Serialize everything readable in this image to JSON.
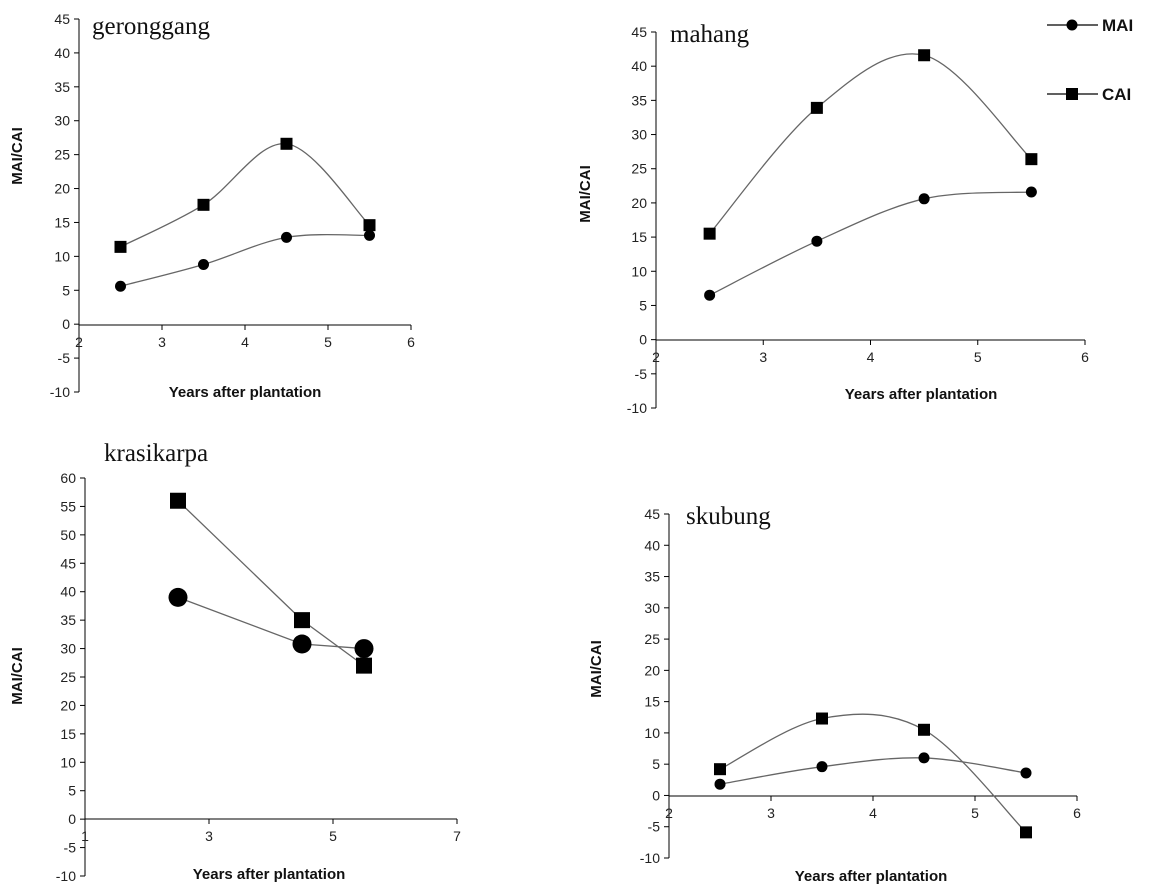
{
  "legend": {
    "entries": [
      {
        "name": "MAI",
        "marker": "circle"
      },
      {
        "name": "CAI",
        "marker": "square"
      }
    ]
  },
  "colors": {
    "line": "#666666",
    "marker": "#000000",
    "axis": "#000000"
  },
  "chart_data": [
    {
      "id": "geronggang",
      "type": "line",
      "smooth": true,
      "title": "geronggang",
      "xlabel": "Years after plantation",
      "ylabel": "MAI/CAI",
      "xlim": [
        2,
        6
      ],
      "ylim": [
        -10,
        45
      ],
      "xticks": [
        2,
        3,
        4,
        5,
        6
      ],
      "yticks": [
        -10,
        -5,
        0,
        5,
        10,
        15,
        20,
        25,
        30,
        35,
        40,
        45
      ],
      "series": [
        {
          "name": "MAI",
          "marker": "circle",
          "x": [
            2.5,
            3.5,
            4.5,
            5.5
          ],
          "values": [
            5.6,
            8.8,
            12.8,
            13.1
          ]
        },
        {
          "name": "CAI",
          "marker": "square",
          "x": [
            2.5,
            3.5,
            4.5,
            5.5
          ],
          "values": [
            11.4,
            17.6,
            26.6,
            14.6
          ]
        }
      ]
    },
    {
      "id": "mahang",
      "type": "line",
      "smooth": true,
      "title": "mahang",
      "xlabel": "Years after plantation",
      "ylabel": "MAI/CAI",
      "xlim": [
        2,
        6
      ],
      "ylim": [
        -10,
        45
      ],
      "xticks": [
        2,
        3,
        4,
        5,
        6
      ],
      "yticks": [
        -10,
        -5,
        0,
        5,
        10,
        15,
        20,
        25,
        30,
        35,
        40,
        45
      ],
      "series": [
        {
          "name": "MAI",
          "marker": "circle",
          "x": [
            2.5,
            3.5,
            4.5,
            5.5
          ],
          "values": [
            6.5,
            14.4,
            20.6,
            21.6
          ]
        },
        {
          "name": "CAI",
          "marker": "square",
          "x": [
            2.5,
            3.5,
            4.5,
            5.5
          ],
          "values": [
            15.5,
            33.9,
            41.6,
            26.4
          ]
        }
      ]
    },
    {
      "id": "krasikarpa",
      "type": "line",
      "smooth": false,
      "title": "krasikarpa",
      "xlabel": "Years after plantation",
      "ylabel": "MAI/CAI",
      "xlim": [
        1,
        7
      ],
      "ylim": [
        -10,
        60
      ],
      "xticks": [
        1,
        3,
        5,
        7
      ],
      "yticks": [
        -10,
        -5,
        0,
        5,
        10,
        15,
        20,
        25,
        30,
        35,
        40,
        45,
        50,
        55,
        60
      ],
      "series": [
        {
          "name": "MAI",
          "marker": "circle",
          "x": [
            2.5,
            4.5,
            5.5
          ],
          "values": [
            39,
            30.8,
            30
          ]
        },
        {
          "name": "CAI",
          "marker": "square",
          "x": [
            2.5,
            4.5,
            5.5
          ],
          "values": [
            56,
            35,
            27
          ]
        }
      ]
    },
    {
      "id": "skubung",
      "type": "line",
      "smooth": true,
      "title": "skubung",
      "xlabel": "Years after plantation",
      "ylabel": "MAI/CAI",
      "xlim": [
        2,
        6
      ],
      "ylim": [
        -10,
        45
      ],
      "xticks": [
        2,
        3,
        4,
        5,
        6
      ],
      "yticks": [
        -10,
        -5,
        0,
        5,
        10,
        15,
        20,
        25,
        30,
        35,
        40,
        45
      ],
      "series": [
        {
          "name": "MAI",
          "marker": "circle",
          "x": [
            2.5,
            3.5,
            4.5,
            5.5
          ],
          "values": [
            1.8,
            4.6,
            6,
            3.6
          ]
        },
        {
          "name": "CAI",
          "marker": "square",
          "x": [
            2.5,
            3.5,
            4.5,
            5.5
          ],
          "values": [
            4.2,
            12.3,
            10.5,
            -5.9
          ]
        }
      ]
    }
  ]
}
